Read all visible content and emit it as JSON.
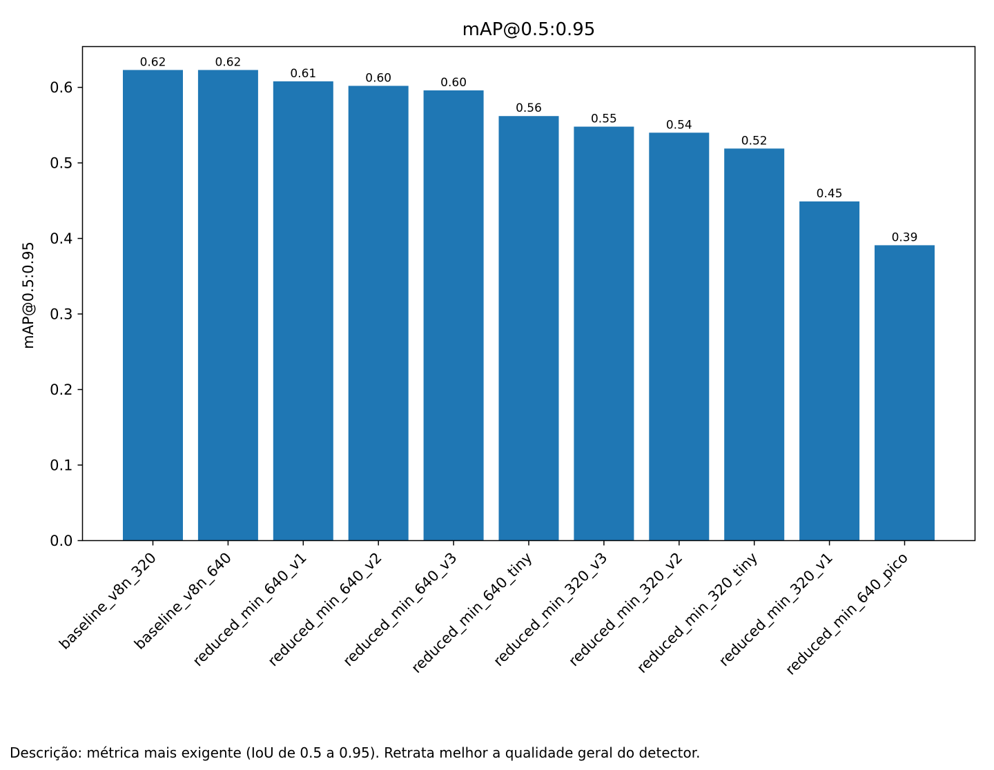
{
  "chart_data": {
    "type": "bar",
    "title": "mAP@0.5:0.95",
    "xlabel": "",
    "ylabel": "mAP@0.5:0.95",
    "categories": [
      "baseline_v8n_320",
      "baseline_v8n_640",
      "reduced_min_640_v1",
      "reduced_min_640_v2",
      "reduced_min_640_v3",
      "reduced_min_640_tiny",
      "reduced_min_320_v3",
      "reduced_min_320_v2",
      "reduced_min_320_tiny",
      "reduced_min_320_v1",
      "reduced_min_640_pico"
    ],
    "values": [
      0.623,
      0.623,
      0.608,
      0.602,
      0.596,
      0.562,
      0.548,
      0.54,
      0.519,
      0.449,
      0.391
    ],
    "value_labels": [
      "0.62",
      "0.62",
      "0.61",
      "0.60",
      "0.60",
      "0.56",
      "0.55",
      "0.54",
      "0.52",
      "0.45",
      "0.39"
    ],
    "yticks": [
      "0.0",
      "0.1",
      "0.2",
      "0.3",
      "0.4",
      "0.5",
      "0.6"
    ],
    "ylim": [
      0,
      0.654
    ],
    "grid": false,
    "bar_color": "#1f77b4"
  },
  "caption": "Descrição: métrica mais exigente (IoU de 0.5 a 0.95). Retrata melhor a qualidade geral do detector."
}
